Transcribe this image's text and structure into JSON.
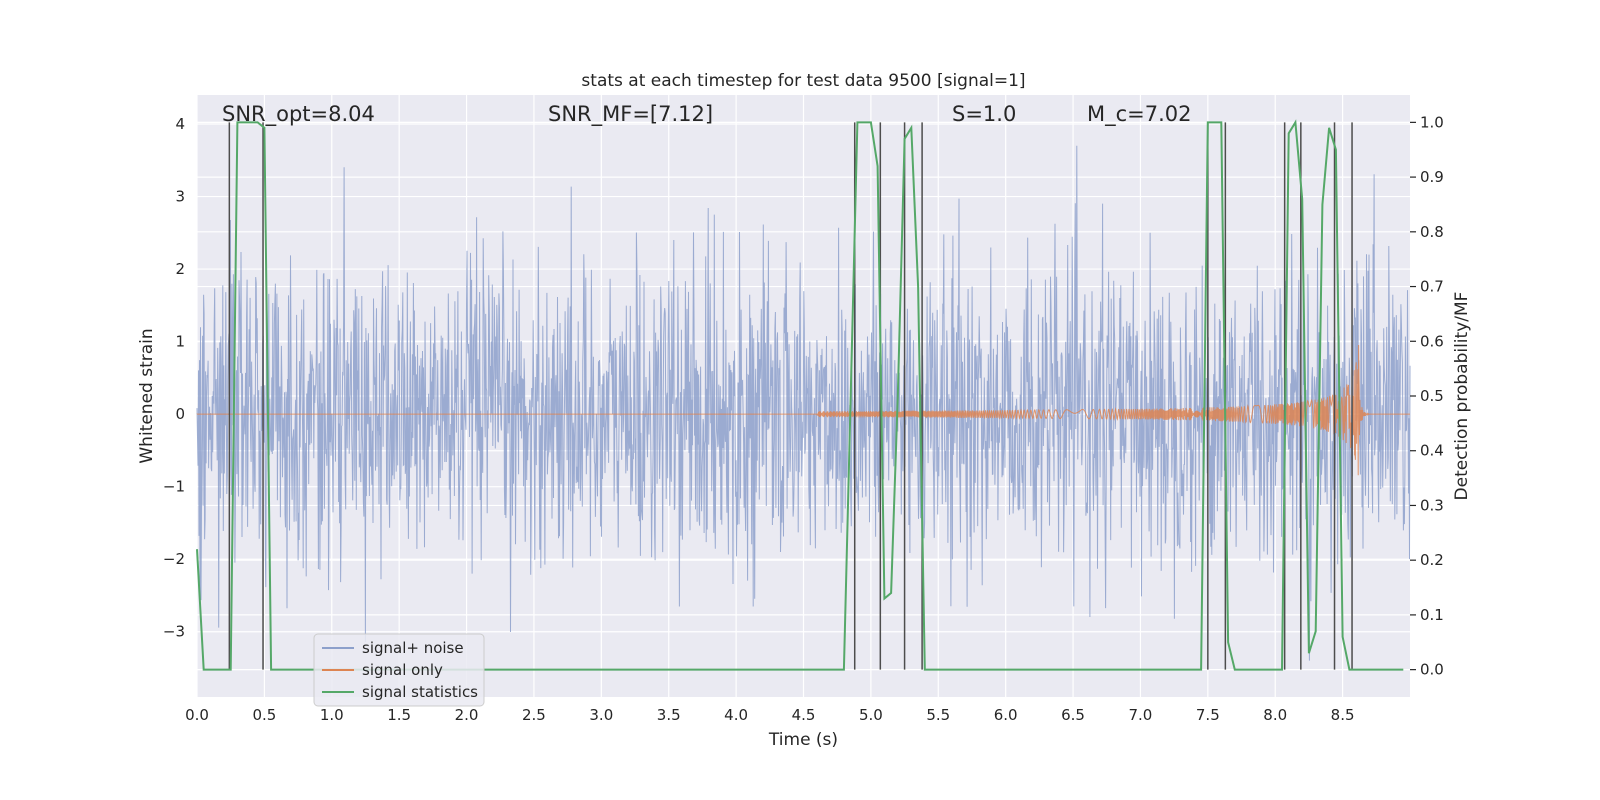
{
  "chart_data": {
    "type": "line",
    "title": "stats at each timestep for test data 9500 [signal=1]",
    "xlabel": "Time (s)",
    "ylabel_left": "Whitened strain",
    "ylabel_right": "Detection probability/MF",
    "xlim": [
      0,
      9.0
    ],
    "ylim_left": [
      -3.9,
      4.4
    ],
    "ylim_right": [
      -0.05,
      1.05
    ],
    "x_ticks": [
      0.0,
      0.5,
      1.0,
      1.5,
      2.0,
      2.5,
      3.0,
      3.5,
      4.0,
      4.5,
      5.0,
      5.5,
      6.0,
      6.5,
      7.0,
      7.5,
      8.0,
      8.5
    ],
    "x_tick_labels": [
      "0.0",
      "0.5",
      "1.0",
      "1.5",
      "2.0",
      "2.5",
      "3.0",
      "3.5",
      "4.0",
      "4.5",
      "5.0",
      "5.5",
      "6.0",
      "6.5",
      "7.0",
      "7.5",
      "8.0",
      "8.5"
    ],
    "y_ticks_left": [
      -3,
      -2,
      -1,
      0,
      1,
      2,
      3,
      4
    ],
    "y_tick_labels_left": [
      "−3",
      "−2",
      "−1",
      "0",
      "1",
      "2",
      "3",
      "4"
    ],
    "y_ticks_right": [
      0.0,
      0.1,
      0.2,
      0.3,
      0.4,
      0.5,
      0.6,
      0.7,
      0.8,
      0.9,
      1.0
    ],
    "y_tick_labels_right": [
      "0.0",
      "0.1",
      "0.2",
      "0.3",
      "0.4",
      "0.5",
      "0.6",
      "0.7",
      "0.8",
      "0.9",
      "1.0"
    ],
    "annotations": {
      "snr_opt": "SNR_opt=8.04",
      "snr_mf": "SNR_MF=[7.12]",
      "s": "S=1.0",
      "mc": "M_c=7.02"
    },
    "series": [
      {
        "name": "signal+ noise",
        "axis": "left",
        "color": "#8da0cb",
        "kind": "noise",
        "std": 1.0,
        "clip": [
          -3.6,
          3.7
        ],
        "n_points": 2400
      },
      {
        "name": "signal only",
        "axis": "left",
        "color": "#dd8452",
        "kind": "chirp",
        "start": 4.6,
        "merger": 8.62,
        "peak_amplitude": 1.0
      },
      {
        "name": "signal statistics",
        "axis": "right",
        "color": "#55a868",
        "x": [
          0.0,
          0.05,
          0.1,
          0.15,
          0.2,
          0.25,
          0.3,
          0.35,
          0.4,
          0.45,
          0.5,
          0.55,
          0.6,
          4.8,
          4.85,
          4.9,
          4.95,
          5.0,
          5.05,
          5.1,
          5.15,
          5.2,
          5.25,
          5.3,
          5.35,
          5.4,
          5.45,
          5.5,
          5.55,
          5.6,
          7.45,
          7.5,
          7.55,
          7.6,
          7.65,
          7.7,
          7.75,
          8.0,
          8.05,
          8.1,
          8.15,
          8.2,
          8.25,
          8.3,
          8.35,
          8.4,
          8.45,
          8.5,
          8.55,
          8.6,
          8.65,
          8.7,
          8.75,
          8.95
        ],
        "y": [
          0.22,
          0.0,
          0.0,
          0.0,
          0.0,
          0.0,
          1.0,
          1.0,
          1.0,
          1.0,
          0.99,
          0.0,
          0.0,
          0.0,
          0.5,
          1.0,
          1.0,
          1.0,
          0.92,
          0.13,
          0.14,
          0.5,
          0.97,
          0.99,
          0.7,
          0.0,
          0.0,
          0.0,
          0.0,
          0.0,
          0.0,
          1.0,
          1.0,
          1.0,
          0.05,
          0.0,
          0.0,
          0.0,
          0.0,
          0.98,
          1.0,
          0.86,
          0.03,
          0.07,
          0.85,
          0.99,
          0.95,
          0.06,
          0.0,
          0.0,
          0.0,
          0.0,
          0.0,
          0.0
        ]
      }
    ],
    "markers": {
      "color": "#4d4d4d",
      "x": [
        0.24,
        0.49,
        4.88,
        5.07,
        5.25,
        5.38,
        7.5,
        7.63,
        8.07,
        8.19,
        8.44,
        8.57
      ]
    },
    "legend": {
      "position": "lower-left",
      "entries": [
        "signal+ noise",
        "signal only",
        "signal statistics"
      ]
    }
  }
}
